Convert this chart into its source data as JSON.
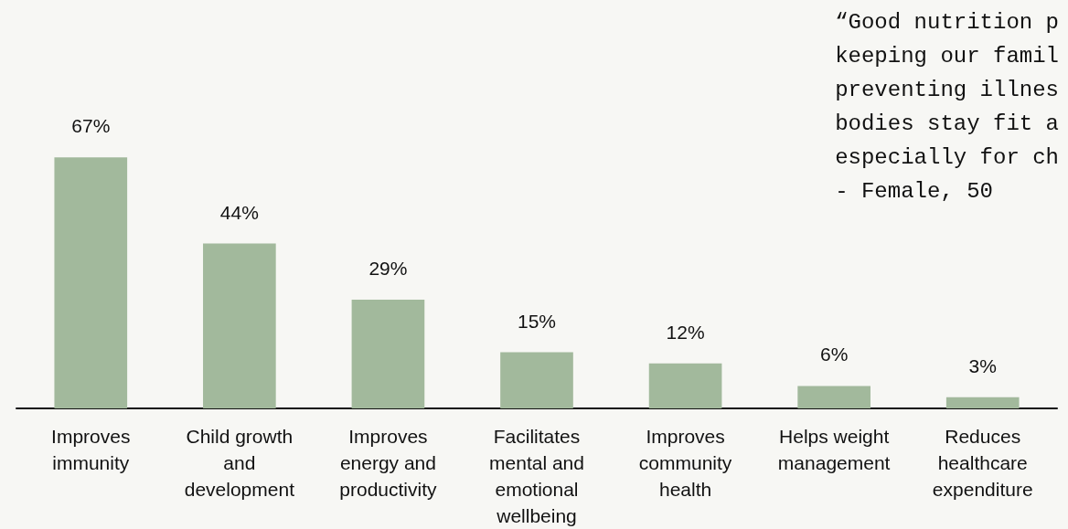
{
  "chart_data": {
    "type": "bar",
    "categories": [
      "Improves\nimmunity",
      "Child growth\nand\ndevelopment",
      "Improves\nenergy and\nproductivity",
      "Facilitates\nmental and\nemotional\nwellbeing",
      "Improves\ncommunity\nhealth",
      "Helps weight\nmanagement",
      "Reduces\nhealthcare\nexpenditure"
    ],
    "values": [
      67,
      44,
      29,
      15,
      12,
      6,
      3
    ],
    "color": "#a2b99c",
    "value_labels": [
      "67%",
      "44%",
      "29%",
      "15%",
      "12%",
      "6%",
      "3%"
    ],
    "grid": false,
    "annotations": [
      "“Good nutrition p\nkeeping our famil\npreventing illnes\nbodies stay fit a\nespecially for ch\n- Female, 50"
    ]
  }
}
